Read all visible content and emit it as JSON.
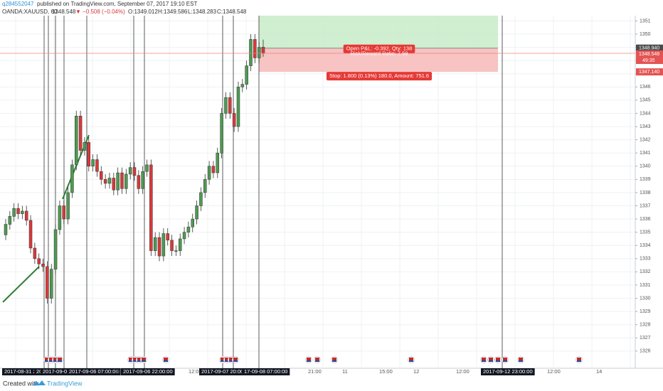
{
  "header": {
    "user": "q284552047",
    "published": "published on TradingView.com, September 07, 2017 19:10 EST",
    "symbol": "OANDA:XAUUSD, 60",
    "last": "1348.548",
    "change": "▼ −0.508 (−0.04%)",
    "open": "O:1349.012",
    "high": "H:1349.586",
    "low": "L:1348.283",
    "close": "C:1348.548"
  },
  "chart_data": {
    "type": "candlestick",
    "up_color": "#4e9a52",
    "down_color": "#d8393a",
    "grid": true,
    "ylim": [
      1324.7,
      1351.4
    ],
    "yticks": [
      1326,
      1327,
      1328,
      1329,
      1330,
      1331,
      1332,
      1333,
      1334,
      1335,
      1336,
      1337,
      1338,
      1339,
      1340,
      1341,
      1342,
      1343,
      1344,
      1345,
      1346,
      1347,
      1348,
      1349,
      1350,
      1351
    ],
    "open": [
      1334.8,
      1335.6,
      1336.2,
      1336.8,
      1336.4,
      1336.6,
      1335.9,
      1333.8,
      1333.0,
      1332.6,
      1332.4,
      1330.0,
      1332.2,
      1335.2,
      1337.0,
      1336.0,
      1338.0,
      1340.1,
      1343.8,
      1341.2,
      1341.8,
      1340.0,
      1340.5,
      1339.6,
      1339.0,
      1338.7,
      1339.1,
      1338.2,
      1339.5,
      1338.3,
      1339.4,
      1339.9,
      1339.3,
      1338.3,
      1339.6,
      1340.1,
      1333.6,
      1334.6,
      1333.2,
      1334.9,
      1334.4,
      1333.6,
      1333.6,
      1334.5,
      1335.0,
      1335.4,
      1336.0,
      1337.0,
      1338.0,
      1339.0,
      1340.0,
      1339.5,
      1341.0,
      1344.0,
      1345.2,
      1344.0,
      1343.0,
      1346.0,
      1346.2,
      1347.6,
      1349.6,
      1348.2,
      1349.012
    ],
    "high": [
      1336.0,
      1336.6,
      1337.2,
      1337.2,
      1337.0,
      1337.0,
      1336.3,
      1334.2,
      1333.4,
      1333.0,
      1332.8,
      1332.6,
      1335.6,
      1337.4,
      1337.4,
      1338.4,
      1340.5,
      1344.2,
      1344.2,
      1342.2,
      1342.2,
      1340.9,
      1340.9,
      1340.0,
      1339.4,
      1339.5,
      1339.5,
      1339.9,
      1339.9,
      1339.8,
      1340.3,
      1340.3,
      1339.7,
      1340.0,
      1340.5,
      1340.5,
      1335.0,
      1335.0,
      1335.3,
      1335.3,
      1334.8,
      1334.0,
      1334.9,
      1335.4,
      1335.8,
      1336.4,
      1337.4,
      1338.4,
      1339.4,
      1340.4,
      1340.4,
      1341.4,
      1344.4,
      1345.6,
      1345.6,
      1344.4,
      1346.4,
      1346.6,
      1348.0,
      1350.0,
      1350.0,
      1349.4,
      1349.586
    ],
    "low": [
      1334.4,
      1335.2,
      1335.8,
      1336.0,
      1336.0,
      1335.5,
      1333.4,
      1332.6,
      1332.2,
      1332.0,
      1329.6,
      1329.6,
      1331.8,
      1334.8,
      1335.6,
      1335.6,
      1337.6,
      1339.7,
      1340.8,
      1340.8,
      1339.6,
      1339.6,
      1339.2,
      1338.6,
      1338.3,
      1338.3,
      1337.8,
      1337.8,
      1337.9,
      1337.9,
      1339.0,
      1338.9,
      1337.9,
      1337.9,
      1339.2,
      1333.2,
      1333.2,
      1332.8,
      1332.8,
      1334.0,
      1333.2,
      1333.2,
      1333.2,
      1334.1,
      1334.6,
      1335.0,
      1335.6,
      1336.6,
      1337.6,
      1338.6,
      1339.1,
      1339.1,
      1340.6,
      1343.6,
      1343.6,
      1342.6,
      1342.6,
      1345.6,
      1345.8,
      1347.2,
      1347.8,
      1347.8,
      1348.283
    ],
    "close": [
      1335.6,
      1336.2,
      1336.8,
      1336.4,
      1336.6,
      1335.9,
      1333.8,
      1333.0,
      1332.6,
      1332.4,
      1330.0,
      1332.2,
      1335.2,
      1337.0,
      1336.0,
      1338.0,
      1340.1,
      1343.8,
      1341.2,
      1341.8,
      1340.0,
      1340.5,
      1339.6,
      1339.0,
      1338.7,
      1339.1,
      1338.2,
      1339.5,
      1338.3,
      1339.4,
      1339.9,
      1339.3,
      1338.3,
      1339.6,
      1340.1,
      1333.6,
      1334.6,
      1333.2,
      1334.9,
      1334.4,
      1333.6,
      1333.6,
      1334.5,
      1335.0,
      1335.4,
      1336.0,
      1337.0,
      1338.0,
      1339.0,
      1340.0,
      1339.5,
      1341.0,
      1344.0,
      1345.2,
      1344.0,
      1343.0,
      1346.0,
      1346.2,
      1347.6,
      1349.6,
      1348.2,
      1349.0,
      1348.548
    ],
    "price_labels": [
      {
        "value": 1348.94,
        "label": "1348.940",
        "color": "#4a4a4a"
      },
      {
        "value": 1348.548,
        "label": "1348.548",
        "color": "#e55353"
      },
      {
        "value": 1347.14,
        "label": "1347.140",
        "color": "#e55353"
      }
    ],
    "countdown": "49:35",
    "position": {
      "entry": 1348.94,
      "stop": 1347.14,
      "pnl_label": "Open P&L: -0.392, Qty: 138",
      "ratio_label": "Risk/Reward Ratio: 7.59",
      "stop_label": "Stop: 1.800 (0.13%) 180.0, Amount: 751.6"
    },
    "time_labels": [
      "2017-08-31 22",
      "20",
      "2017-09-0",
      "2017-09-06 07:00:00",
      "20",
      "2017-09-06 22:00:00",
      "12:00",
      "2017-09-07 20:00:00",
      "17-09-08 07:00:00",
      "3",
      "21:00",
      "11",
      "15:00",
      "12",
      "12:00",
      "2017-09-12 23:00:00",
      "12:00",
      "14"
    ]
  },
  "footer": {
    "created": "Created with",
    "brand": "TradingView"
  }
}
